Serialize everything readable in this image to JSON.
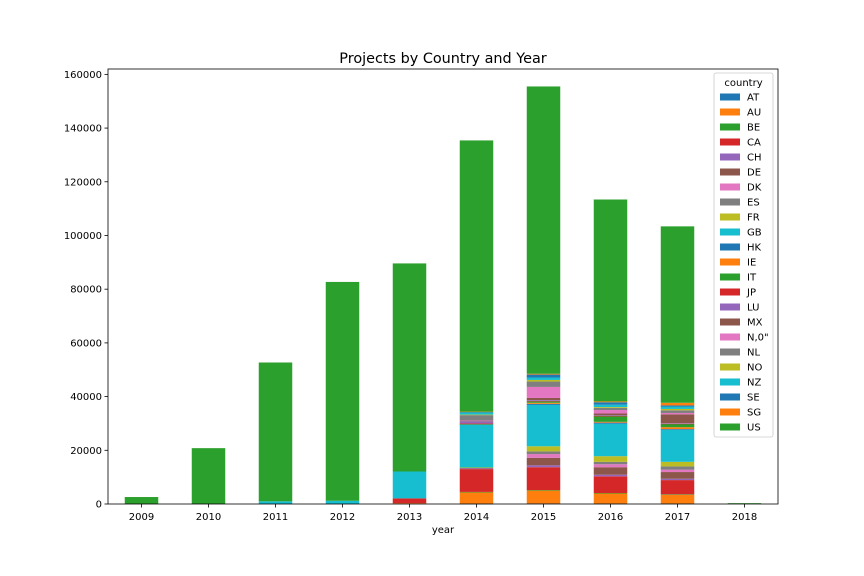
{
  "chart_data": {
    "type": "bar",
    "stacked": true,
    "title": "Projects by Country and Year",
    "xlabel": "year",
    "ylabel": "",
    "ylim": [
      0,
      162000
    ],
    "yticks": [
      0,
      20000,
      40000,
      60000,
      80000,
      100000,
      120000,
      140000,
      160000
    ],
    "categories": [
      "2009",
      "2010",
      "2011",
      "2012",
      "2013",
      "2014",
      "2015",
      "2016",
      "2017",
      "2018"
    ],
    "legend": {
      "title": "country",
      "position": "top-right"
    },
    "series": [
      {
        "name": "AT",
        "color": "#1f77b4",
        "values": [
          0,
          0,
          0,
          0,
          0,
          100,
          200,
          150,
          150,
          0
        ]
      },
      {
        "name": "AU",
        "color": "#ff7f0e",
        "values": [
          0,
          0,
          0,
          0,
          300,
          4300,
          4800,
          3800,
          3300,
          0
        ]
      },
      {
        "name": "BE",
        "color": "#2ca02c",
        "values": [
          0,
          0,
          0,
          0,
          0,
          100,
          200,
          150,
          150,
          0
        ]
      },
      {
        "name": "CA",
        "color": "#d62728",
        "values": [
          0,
          0,
          0,
          0,
          1800,
          8500,
          8500,
          6200,
          5300,
          0
        ]
      },
      {
        "name": "CH",
        "color": "#9467bd",
        "values": [
          0,
          0,
          0,
          0,
          0,
          200,
          700,
          600,
          500,
          0
        ]
      },
      {
        "name": "DE",
        "color": "#8c564b",
        "values": [
          0,
          0,
          0,
          0,
          0,
          100,
          2800,
          2800,
          2500,
          0
        ]
      },
      {
        "name": "DK",
        "color": "#e377c2",
        "values": [
          0,
          0,
          0,
          0,
          0,
          100,
          1400,
          1100,
          900,
          0
        ]
      },
      {
        "name": "ES",
        "color": "#7f7f7f",
        "values": [
          0,
          0,
          0,
          0,
          0,
          100,
          1000,
          900,
          1200,
          0
        ]
      },
      {
        "name": "FR",
        "color": "#bcbd22",
        "values": [
          0,
          0,
          0,
          0,
          0,
          100,
          1900,
          2100,
          1700,
          0
        ]
      },
      {
        "name": "GB",
        "color": "#17becf",
        "values": [
          0,
          0,
          1000,
          1200,
          10000,
          16000,
          15400,
          12100,
          11900,
          0
        ]
      },
      {
        "name": "HK",
        "color": "#1f77b4",
        "values": [
          0,
          0,
          0,
          0,
          0,
          100,
          400,
          400,
          300,
          0
        ]
      },
      {
        "name": "IE",
        "color": "#ff7f0e",
        "values": [
          0,
          0,
          0,
          0,
          0,
          100,
          400,
          300,
          700,
          0
        ]
      },
      {
        "name": "IT",
        "color": "#2ca02c",
        "values": [
          0,
          0,
          0,
          0,
          0,
          100,
          500,
          2100,
          1200,
          0
        ]
      },
      {
        "name": "JP",
        "color": "#d62728",
        "values": [
          0,
          0,
          0,
          0,
          0,
          100,
          200,
          100,
          100,
          0
        ]
      },
      {
        "name": "LU",
        "color": "#9467bd",
        "values": [
          0,
          0,
          0,
          0,
          0,
          800,
          300,
          200,
          200,
          0
        ]
      },
      {
        "name": "MX",
        "color": "#8c564b",
        "values": [
          0,
          0,
          0,
          0,
          0,
          200,
          800,
          700,
          3300,
          0
        ]
      },
      {
        "name": "N,0\"",
        "color": "#e377c2",
        "values": [
          0,
          0,
          0,
          0,
          0,
          100,
          4100,
          1300,
          500,
          0
        ]
      },
      {
        "name": "NL",
        "color": "#7f7f7f",
        "values": [
          0,
          0,
          0,
          0,
          0,
          2000,
          2000,
          800,
          1000,
          0
        ]
      },
      {
        "name": "NO",
        "color": "#bcbd22",
        "values": [
          0,
          0,
          0,
          0,
          0,
          200,
          600,
          300,
          500,
          0
        ]
      },
      {
        "name": "NZ",
        "color": "#17becf",
        "values": [
          0,
          0,
          0,
          0,
          0,
          900,
          900,
          900,
          900,
          0
        ]
      },
      {
        "name": "SE",
        "color": "#1f77b4",
        "values": [
          0,
          0,
          0,
          0,
          0,
          100,
          1100,
          900,
          400,
          0
        ]
      },
      {
        "name": "SG",
        "color": "#ff7f0e",
        "values": [
          0,
          0,
          0,
          0,
          0,
          100,
          300,
          300,
          1000,
          0
        ]
      },
      {
        "name": "US",
        "color": "#2ca02c",
        "values": [
          2600,
          20800,
          51700,
          81500,
          77500,
          101000,
          107000,
          75200,
          65700,
          300
        ]
      }
    ]
  }
}
